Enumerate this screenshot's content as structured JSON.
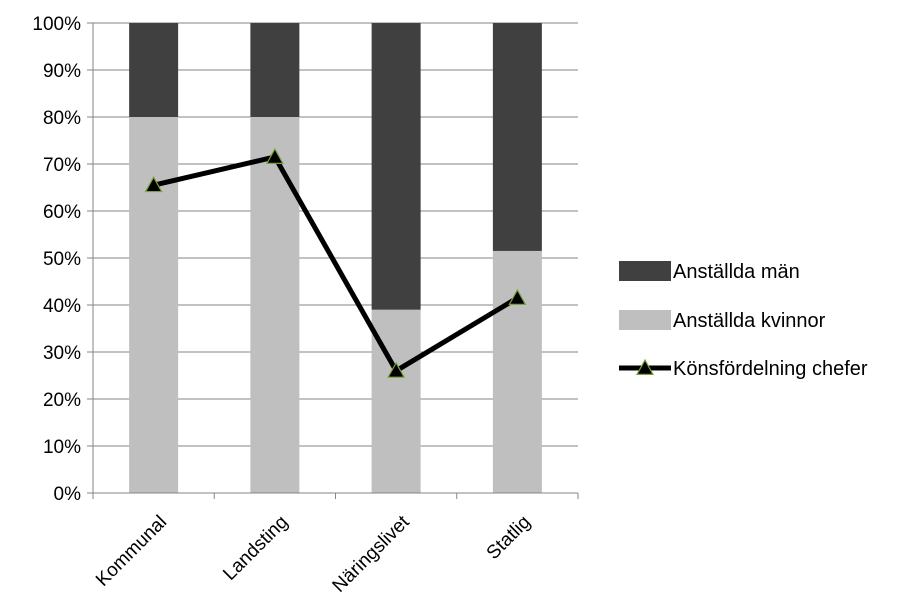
{
  "chart_data": {
    "type": "bar",
    "stacked": true,
    "percent_axis": true,
    "categories": [
      "Kommunal",
      "Landsting",
      "Näringslivet",
      "Statlig"
    ],
    "series": [
      {
        "name": "Anställda kvinnor",
        "kind": "bar",
        "color": "#bfbfbf",
        "values": [
          80,
          80,
          39,
          51.5
        ]
      },
      {
        "name": "Anställda män",
        "kind": "bar",
        "color": "#404040",
        "values": [
          20,
          20,
          61,
          48.5
        ]
      },
      {
        "name": "Könsfördelning chefer",
        "kind": "line",
        "color": "#000000",
        "marker": "triangle",
        "marker_fill": "#000000",
        "marker_stroke": "#7aa23c",
        "values": [
          65.5,
          71.5,
          26,
          41.5
        ]
      }
    ],
    "ylim": [
      0,
      100
    ],
    "yticks": [
      "0%",
      "10%",
      "20%",
      "30%",
      "40%",
      "50%",
      "60%",
      "70%",
      "80%",
      "90%",
      "100%"
    ],
    "grid": true,
    "legend_position": "right",
    "legend_order": [
      "Anställda män",
      "Anställda kvinnor",
      "Könsfördelning chefer"
    ]
  }
}
